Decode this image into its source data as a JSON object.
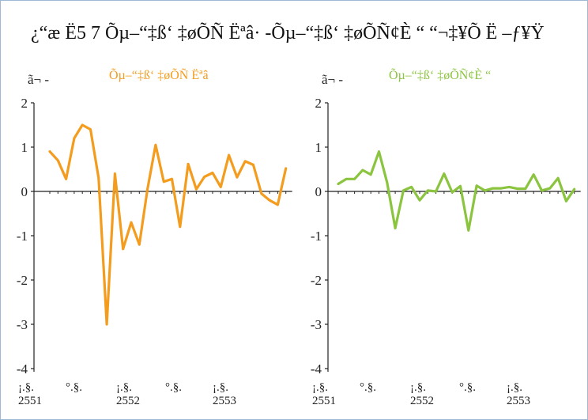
{
  "title": "¿“æ Ë5 7 Õµ–“‡ß‘ ‡øÕÑ Ëªâ· -Õµ–“‡ß‘ ‡øÕÑ¢È “  “¬‡¥Õ  Ë –ƒ¥Ÿ",
  "colors": {
    "left": "#f39c1e",
    "right": "#8bc43f",
    "axis": "#222222",
    "frame": "#9db9d3"
  },
  "chart_data": [
    {
      "type": "line",
      "series": [
        {
          "name": "Õµ–“‡ß‘ ‡øÕÑ Ëªâ",
          "values": [
            0.9,
            0.7,
            0.28,
            1.2,
            1.5,
            1.4,
            0.3,
            -3.0,
            0.4,
            -1.3,
            -0.7,
            -1.2,
            0.05,
            1.05,
            0.22,
            0.28,
            -0.8,
            0.62,
            0.05,
            0.33,
            0.42,
            0.1,
            0.82,
            0.32,
            0.68,
            0.6,
            -0.05,
            -0.2,
            -0.3,
            0.52
          ]
        }
      ],
      "ylabel": "ã¬ -",
      "ylim": [
        -4,
        2
      ],
      "yticks": [
        "2",
        "1",
        "0",
        "-1",
        "-2",
        "-3",
        "-4"
      ],
      "xticklabels": [
        "¡.§.\n2551",
        "°.§.",
        "¡.§.\n2552",
        "°.§.",
        "¡.§.\n2553"
      ]
    },
    {
      "type": "line",
      "series": [
        {
          "name": "Õµ–“‡ß‘ ‡øÕÑ¢È “",
          "values": [
            0.17,
            0.28,
            0.28,
            0.48,
            0.38,
            0.9,
            0.2,
            -0.83,
            0.02,
            0.1,
            -0.2,
            0.02,
            0.0,
            0.4,
            -0.02,
            0.12,
            -0.88,
            0.13,
            0.02,
            0.07,
            0.07,
            0.1,
            0.06,
            0.06,
            0.38,
            0.02,
            0.07,
            0.3,
            -0.22,
            0.05
          ]
        }
      ],
      "ylabel": "ã¬ -",
      "ylim": [
        -4,
        2
      ],
      "yticks": [
        "2",
        "1",
        "0",
        "-1",
        "-2",
        "-3",
        "-4"
      ],
      "xticklabels": [
        "¡.§.\n2551",
        "°.§.",
        "¡.§.\n2552",
        "°.§.",
        "¡.§.\n2553"
      ]
    }
  ]
}
